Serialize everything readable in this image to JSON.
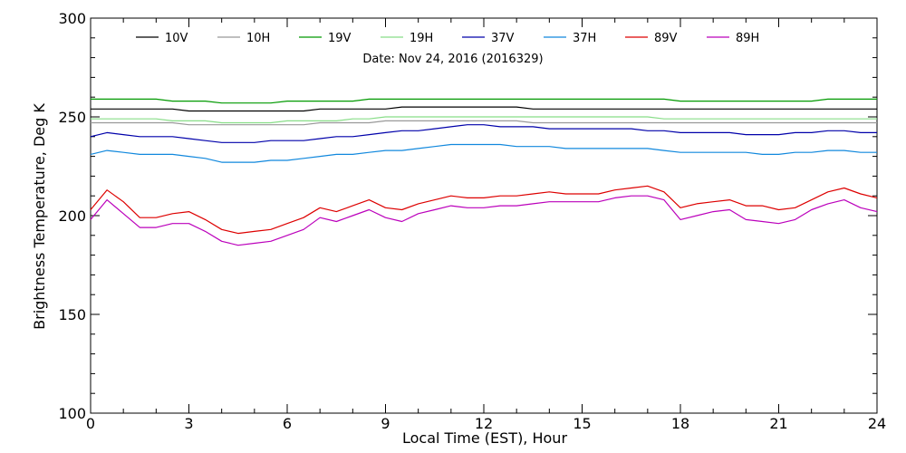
{
  "chart_data": {
    "type": "line",
    "title": "",
    "subtitle": "Date: Nov 24, 2016 (2016329)",
    "xlabel": "Local Time (EST), Hour",
    "ylabel": "Brightness Temperature, Deg K",
    "xlim": [
      0,
      24
    ],
    "ylim": [
      100,
      300
    ],
    "x_ticks": [
      0,
      3,
      6,
      9,
      12,
      15,
      18,
      21,
      24
    ],
    "y_ticks": [
      100,
      150,
      200,
      250,
      300
    ],
    "grid": false,
    "legend_position": "top",
    "x": [
      0,
      0.5,
      1,
      1.5,
      2,
      2.5,
      3,
      3.5,
      4,
      4.5,
      5,
      5.5,
      6,
      6.5,
      7,
      7.5,
      8,
      8.5,
      9,
      9.5,
      10,
      10.5,
      11,
      11.5,
      12,
      12.5,
      13,
      13.5,
      14,
      14.5,
      15,
      15.5,
      16,
      16.5,
      17,
      17.5,
      18,
      18.5,
      19,
      19.5,
      20,
      20.5,
      21,
      21.5,
      22,
      22.5,
      23,
      23.5,
      24
    ],
    "series": [
      {
        "name": "10V",
        "color": "#000000",
        "values": [
          254,
          254,
          254,
          254,
          254,
          254,
          253,
          253,
          253,
          253,
          253,
          253,
          253,
          253,
          254,
          254,
          254,
          254,
          254,
          255,
          255,
          255,
          255,
          255,
          255,
          255,
          255,
          254,
          254,
          254,
          254,
          254,
          254,
          254,
          254,
          254,
          254,
          254,
          254,
          254,
          254,
          254,
          254,
          254,
          254,
          254,
          254,
          254,
          254
        ]
      },
      {
        "name": "10H",
        "color": "#999999",
        "values": [
          247,
          247,
          247,
          247,
          247,
          247,
          246,
          246,
          246,
          246,
          246,
          246,
          246,
          246,
          247,
          247,
          247,
          247,
          248,
          248,
          248,
          248,
          248,
          248,
          248,
          248,
          248,
          247,
          247,
          247,
          247,
          247,
          247,
          247,
          247,
          247,
          247,
          247,
          247,
          247,
          247,
          247,
          247,
          247,
          247,
          247,
          247,
          247,
          247
        ]
      },
      {
        "name": "19V",
        "color": "#009900",
        "values": [
          259,
          259,
          259,
          259,
          259,
          258,
          258,
          258,
          257,
          257,
          257,
          257,
          258,
          258,
          258,
          258,
          258,
          259,
          259,
          259,
          259,
          259,
          259,
          259,
          259,
          259,
          259,
          259,
          259,
          259,
          259,
          259,
          259,
          259,
          259,
          259,
          258,
          258,
          258,
          258,
          258,
          258,
          258,
          258,
          258,
          259,
          259,
          259,
          259
        ]
      },
      {
        "name": "19H",
        "color": "#88dd88",
        "values": [
          249,
          249,
          249,
          249,
          249,
          248,
          248,
          248,
          247,
          247,
          247,
          247,
          248,
          248,
          248,
          248,
          249,
          249,
          250,
          250,
          250,
          250,
          250,
          250,
          250,
          250,
          250,
          250,
          250,
          250,
          250,
          250,
          250,
          250,
          250,
          249,
          249,
          249,
          249,
          249,
          249,
          249,
          249,
          249,
          249,
          249,
          249,
          249,
          249
        ]
      },
      {
        "name": "37V",
        "color": "#0000aa",
        "values": [
          240,
          242,
          241,
          240,
          240,
          240,
          239,
          238,
          237,
          237,
          237,
          238,
          238,
          238,
          239,
          240,
          240,
          241,
          242,
          243,
          243,
          244,
          245,
          246,
          246,
          245,
          245,
          245,
          244,
          244,
          244,
          244,
          244,
          244,
          243,
          243,
          242,
          242,
          242,
          242,
          241,
          241,
          241,
          242,
          242,
          243,
          243,
          242,
          242
        ]
      },
      {
        "name": "37H",
        "color": "#1188dd",
        "values": [
          231,
          233,
          232,
          231,
          231,
          231,
          230,
          229,
          227,
          227,
          227,
          228,
          228,
          229,
          230,
          231,
          231,
          232,
          233,
          233,
          234,
          235,
          236,
          236,
          236,
          236,
          235,
          235,
          235,
          234,
          234,
          234,
          234,
          234,
          234,
          233,
          232,
          232,
          232,
          232,
          232,
          231,
          231,
          232,
          232,
          233,
          233,
          232,
          232
        ]
      },
      {
        "name": "89V",
        "color": "#dd0000",
        "values": [
          203,
          213,
          207,
          199,
          199,
          201,
          202,
          198,
          193,
          191,
          192,
          193,
          196,
          199,
          204,
          202,
          205,
          208,
          204,
          203,
          206,
          208,
          210,
          209,
          209,
          210,
          210,
          211,
          212,
          211,
          211,
          211,
          213,
          214,
          215,
          212,
          204,
          206,
          207,
          208,
          205,
          205,
          203,
          204,
          208,
          212,
          214,
          211,
          209
        ]
      },
      {
        "name": "89H",
        "color": "#bb00bb",
        "values": [
          198,
          208,
          201,
          194,
          194,
          196,
          196,
          192,
          187,
          185,
          186,
          187,
          190,
          193,
          199,
          197,
          200,
          203,
          199,
          197,
          201,
          203,
          205,
          204,
          204,
          205,
          205,
          206,
          207,
          207,
          207,
          207,
          209,
          210,
          210,
          208,
          198,
          200,
          202,
          203,
          198,
          197,
          196,
          198,
          203,
          206,
          208,
          204,
          202
        ]
      }
    ]
  }
}
